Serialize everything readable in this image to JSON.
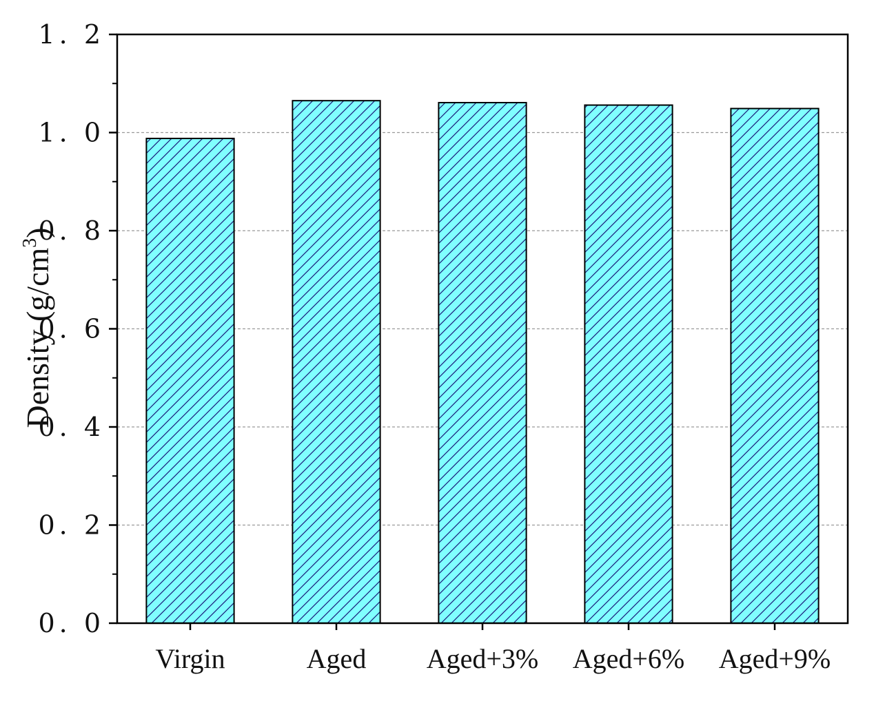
{
  "chart_data": {
    "type": "bar",
    "categories": [
      "Virgin",
      "Aged",
      "Aged+3%",
      "Aged+6%",
      "Aged+9%"
    ],
    "values": [
      0.988,
      1.065,
      1.061,
      1.056,
      1.049
    ],
    "title": "",
    "xlabel": "",
    "ylabel": "Density (g/cm",
    "ylabel_sup": "3",
    "ylabel_end": ")",
    "ylim": [
      0,
      1.2
    ],
    "yticks": [
      0.0,
      0.2,
      0.4,
      0.6,
      0.8,
      1.0,
      1.2
    ],
    "ytick_labels": [
      "0. 0",
      "0. 2",
      "0. 4",
      "0. 6",
      "0. 8",
      "1. 0",
      "1. 2"
    ],
    "grid": "horizontal dashed",
    "bar_fill": "#80ffff",
    "hatch_color": "#1a1a7a",
    "hatch": "diagonal"
  }
}
